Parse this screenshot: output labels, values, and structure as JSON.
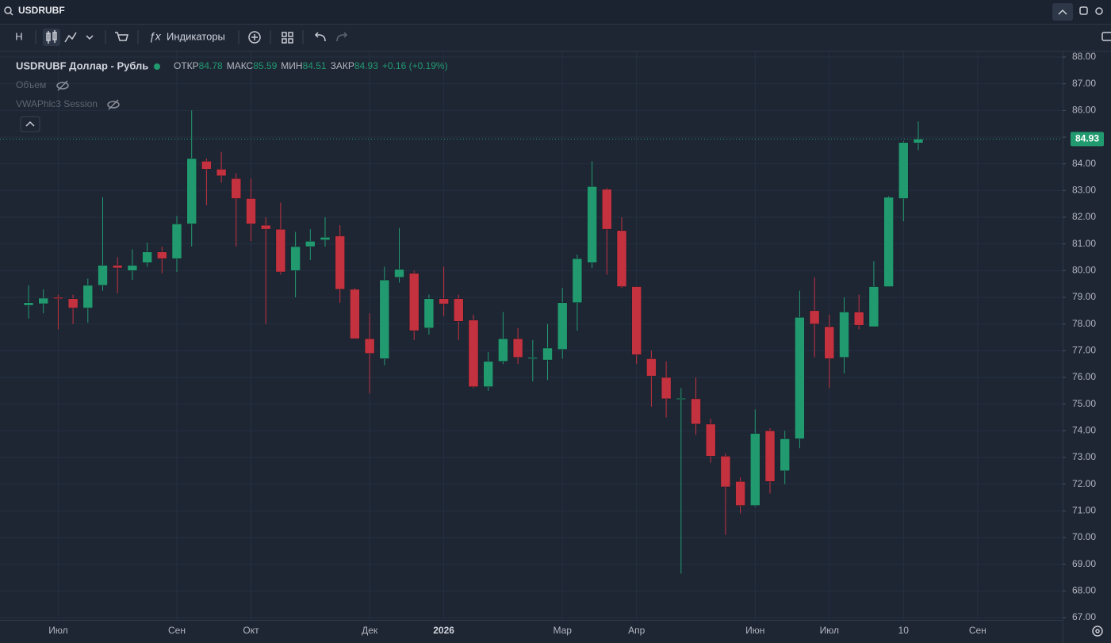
{
  "toolbar": {
    "symbol": "USDRUBF",
    "interval": "Н",
    "indicators": "Индикаторы"
  },
  "chart_data": {
    "type": "candlestick",
    "title": "USDRUBF Доллар - Рубль",
    "ohlc_labels": {
      "open": "ОТКР",
      "high": "МАКС",
      "low": "МИН",
      "close": "ЗАКР"
    },
    "change": "+0.16 (+0.19%)",
    "indicators": [
      "Объем",
      "VWAPhlc3 Session"
    ],
    "up_color": "#229a70",
    "down_color": "#c4323f",
    "grid": true,
    "categories": [
      null,
      null,
      "Июл",
      null,
      null,
      null,
      null,
      null,
      null,
      null,
      "Сен",
      null,
      null,
      null,
      null,
      "Окт",
      null,
      null,
      null,
      null,
      null,
      null,
      null,
      "Дек",
      null,
      null,
      null,
      null,
      "2026",
      null,
      null,
      null,
      null,
      null,
      null,
      null,
      "Мар",
      null,
      null,
      null,
      null,
      "Апр",
      null,
      null,
      null,
      null,
      null,
      null,
      null,
      "Июн",
      null,
      null,
      null,
      null,
      "Июл",
      null,
      null,
      null,
      null,
      "10",
      null,
      null,
      null,
      null,
      "Сен",
      null,
      null,
      null,
      null
    ],
    "open": [
      78.7,
      78.76,
      79.0,
      78.95,
      78.6,
      79.45,
      80.2,
      80.0,
      80.3,
      80.7,
      80.45,
      81.75,
      84.1,
      83.8,
      83.45,
      82.7,
      81.7,
      81.55,
      80.0,
      80.9,
      81.15,
      81.3,
      79.3,
      77.45,
      76.7,
      79.75,
      79.9,
      77.85,
      78.95,
      78.95,
      78.15,
      75.65,
      76.6,
      77.45,
      76.7,
      76.65,
      77.05,
      78.8,
      80.3,
      83.05,
      81.5,
      79.4,
      76.7,
      76.0,
      75.2,
      75.2,
      74.25,
      73.05,
      72.1,
      71.2,
      74.0,
      72.5,
      73.7,
      78.5,
      77.9,
      76.75,
      78.45,
      77.9,
      79.4,
      82.7,
      84.78,
      null,
      null,
      null,
      null,
      null,
      null,
      null,
      null
    ],
    "high": [
      79.45,
      79.3,
      79.1,
      79.1,
      79.7,
      82.75,
      80.5,
      80.8,
      81.05,
      80.9,
      82.05,
      86.0,
      84.2,
      84.45,
      83.65,
      83.45,
      82.0,
      82.55,
      81.45,
      81.55,
      82.0,
      81.7,
      79.35,
      78.4,
      80.15,
      81.6,
      80.0,
      79.1,
      80.15,
      79.1,
      78.35,
      76.95,
      78.45,
      77.85,
      77.4,
      78.0,
      79.35,
      80.6,
      84.1,
      83.1,
      82.0,
      79.4,
      77.0,
      76.6,
      75.6,
      76.0,
      74.45,
      73.15,
      72.25,
      74.8,
      74.1,
      74.0,
      79.25,
      79.75,
      78.35,
      79.0,
      79.1,
      80.35,
      82.8,
      84.85,
      85.59,
      null,
      null,
      null,
      null,
      null,
      null,
      null,
      null
    ],
    "low": [
      78.2,
      78.4,
      77.8,
      78.0,
      78.05,
      79.25,
      79.15,
      79.65,
      80.15,
      79.9,
      79.95,
      80.9,
      82.45,
      83.3,
      80.9,
      81.1,
      78.0,
      79.85,
      79.0,
      80.4,
      80.9,
      78.8,
      77.45,
      75.4,
      76.45,
      79.55,
      77.4,
      77.6,
      78.3,
      77.4,
      75.6,
      75.5,
      76.5,
      76.5,
      75.85,
      75.9,
      76.7,
      77.75,
      80.1,
      79.85,
      79.35,
      76.5,
      74.9,
      74.5,
      68.65,
      73.85,
      72.8,
      70.1,
      70.9,
      71.15,
      71.65,
      72.0,
      73.35,
      76.75,
      75.6,
      76.15,
      77.8,
      77.9,
      79.4,
      81.85,
      84.51,
      null,
      null,
      null,
      null,
      null,
      null,
      null,
      null
    ],
    "close": [
      78.8,
      78.97,
      78.95,
      78.6,
      79.45,
      80.2,
      80.1,
      80.2,
      80.7,
      80.45,
      81.75,
      84.2,
      83.8,
      83.55,
      82.7,
      81.75,
      81.55,
      79.95,
      80.9,
      81.1,
      81.25,
      79.3,
      77.45,
      76.9,
      79.65,
      80.05,
      77.75,
      78.95,
      78.75,
      78.1,
      75.65,
      76.6,
      77.45,
      76.75,
      76.75,
      77.1,
      78.8,
      80.45,
      83.15,
      81.55,
      79.4,
      76.85,
      76.05,
      75.2,
      75.22,
      74.25,
      73.05,
      71.9,
      71.2,
      73.9,
      72.1,
      73.7,
      78.25,
      78.0,
      76.7,
      78.45,
      77.95,
      79.4,
      82.75,
      84.8,
      84.93,
      null,
      null,
      null,
      null,
      null,
      null,
      null,
      null
    ],
    "ylim": [
      67,
      88
    ],
    "yticks": [
      {
        "value": 67,
        "label": "67.00"
      },
      {
        "value": 68,
        "label": "68.00"
      },
      {
        "value": 69,
        "label": "69.00"
      },
      {
        "value": 70,
        "label": "70.00"
      },
      {
        "value": 71,
        "label": "71.00"
      },
      {
        "value": 72,
        "label": "72.00"
      },
      {
        "value": 73,
        "label": "73.00"
      },
      {
        "value": 74,
        "label": "74.00"
      },
      {
        "value": 75,
        "label": "75.00"
      },
      {
        "value": 76,
        "label": "76.00"
      },
      {
        "value": 77,
        "label": "77.00"
      },
      {
        "value": 78,
        "label": "78.00"
      },
      {
        "value": 79,
        "label": "79.00"
      },
      {
        "value": 80,
        "label": "80.00"
      },
      {
        "value": 81,
        "label": "81.00"
      },
      {
        "value": 82,
        "label": "82.00"
      },
      {
        "value": 83,
        "label": "83.00"
      },
      {
        "value": 84,
        "label": "84.00"
      },
      {
        "value": 85,
        "label": "85.00"
      },
      {
        "value": 86,
        "label": "86.00"
      },
      {
        "value": 87,
        "label": "87.00"
      },
      {
        "value": 88,
        "label": "88.00"
      }
    ]
  }
}
